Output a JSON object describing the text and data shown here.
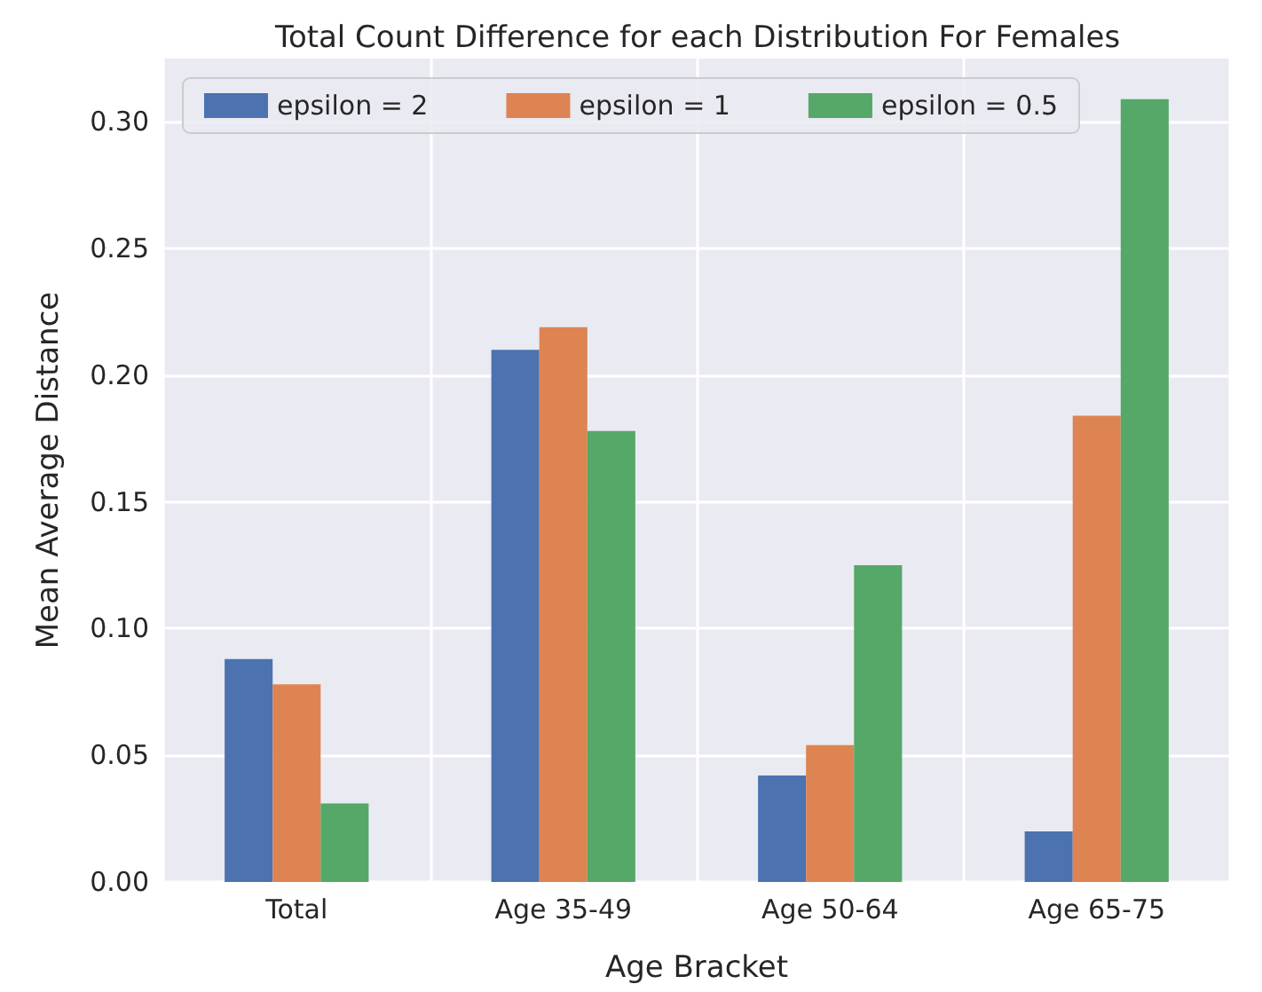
{
  "chart_data": {
    "type": "bar",
    "title": "Total Count Difference for each Distribution For Females",
    "xlabel": "Age Bracket",
    "ylabel": "Mean Average Distance",
    "categories": [
      "Total",
      "Age 35-49",
      "Age 50-64",
      "Age 65-75"
    ],
    "series": [
      {
        "name": "epsilon = 2",
        "color": "#4c72b0",
        "values": [
          0.088,
          0.21,
          0.042,
          0.02
        ]
      },
      {
        "name": "epsilon = 1",
        "color": "#dd8452",
        "values": [
          0.078,
          0.219,
          0.054,
          0.184
        ]
      },
      {
        "name": "epsilon = 0.5",
        "color": "#55a868",
        "values": [
          0.031,
          0.178,
          0.125,
          0.309
        ]
      }
    ],
    "ylim": [
      0,
      0.325
    ],
    "yticks": [
      {
        "value": 0,
        "label": "0.00"
      },
      {
        "value": 0.05,
        "label": "0.05"
      },
      {
        "value": 0.1,
        "label": "0.10"
      },
      {
        "value": 0.15,
        "label": "0.15"
      },
      {
        "value": 0.2,
        "label": "0.20"
      },
      {
        "value": 0.25,
        "label": "0.25"
      },
      {
        "value": 0.3,
        "label": "0.30"
      }
    ],
    "grid": true,
    "legend": "top"
  }
}
